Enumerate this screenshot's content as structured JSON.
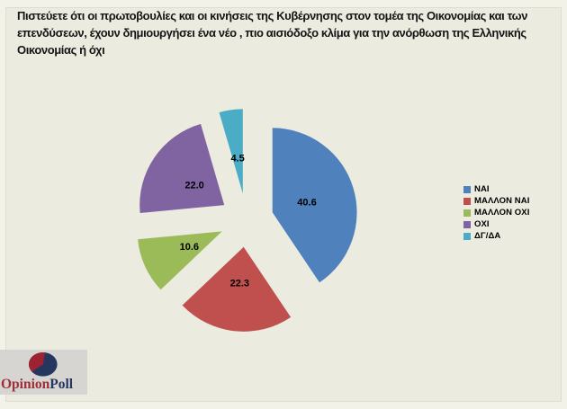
{
  "question": {
    "lines": [
      "Πιστεύετε ότι οι πρωτοβουλίες και οι κινήσεις της Κυβέρνησης στον τομέα της Οικονομίας και των",
      "επενδύσεων, έχουν δημιουργήσει ένα νέο , πιο αισιόδοξο κλίμα για την ανόρθωση της Ελληνικής",
      "Οικονομίας ή όχι"
    ]
  },
  "chart_data": {
    "type": "pie",
    "title": "Πιστεύετε ότι οι πρωτοβουλίες και οι κινήσεις της Κυβέρνησης στον τομέα της Οικονομίας και των επενδύσεων, έχουν δημιουργήσει ένα νέο , πιο αισιόδοξο κλίμα για την ανόρθωση της Ελληνικής Οικονομίας ή όχι",
    "categories": [
      "ΝΑΙ",
      "ΜΑΛΛΟΝ ΝΑΙ",
      "ΜΑΛΛΟΝ ΟΧΙ",
      "ΟΧΙ",
      "ΔΓ/ΔΑ"
    ],
    "values": [
      40.6,
      22.3,
      10.6,
      22.0,
      4.5
    ],
    "value_labels": [
      "40.6",
      "22.3",
      "10.6",
      "22.0",
      "4.5"
    ],
    "colors": [
      "#4F81BD",
      "#C0504D",
      "#9BBB59",
      "#8064A2",
      "#4BACC6"
    ],
    "start_angle_deg": 0,
    "direction": "clockwise",
    "exploded": true,
    "legend_position": "right",
    "data_labels": "values_inside"
  },
  "logo": {
    "text_primary": "Opinion",
    "text_secondary": "Poll",
    "colors": {
      "primary": "#9E2F38",
      "secondary": "#24355E",
      "ellipse": "#26375F",
      "wedge": "#9E2330",
      "background": "#D6D5D1"
    }
  },
  "colors": {
    "page_background": "#F3F2E9",
    "chart_background": "#ECEBE0",
    "text": "#141414"
  }
}
